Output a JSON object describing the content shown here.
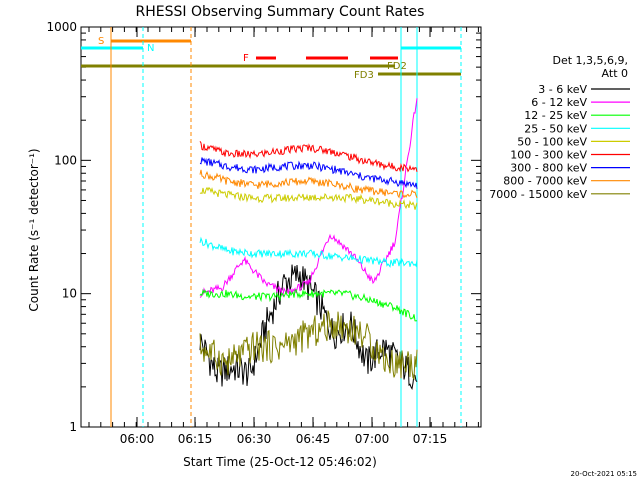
{
  "chart_data": {
    "type": "line",
    "title": "RHESSI Observing Summary Count Rates",
    "xlabel": "Start Time (25-Oct-12 05:46:02)",
    "ylabel": "Count Rate (s⁻¹ detector⁻¹)",
    "x_ticks": [
      "06:00",
      "06:15",
      "06:30",
      "06:45",
      "07:00",
      "07:15"
    ],
    "y_ticks": [
      "1",
      "10",
      "100",
      "1000"
    ],
    "ylim": [
      1,
      1000
    ],
    "yscale": "log",
    "legend_header": [
      "Det 1,3,5,6,9,",
      "Att 0"
    ],
    "legend_placement": "right",
    "series": [
      {
        "name": "3 - 6 keV",
        "color": "#000000",
        "values": [
          4.5,
          2.5,
          2.8,
          2.5,
          6,
          12,
          14,
          9,
          5,
          6,
          3,
          4,
          3,
          2.3
        ]
      },
      {
        "name": "6 - 12 keV",
        "color": "#ff00ff",
        "values": [
          10,
          11,
          18,
          12,
          10,
          12,
          28,
          20,
          12,
          25,
          300
        ]
      },
      {
        "name": "12 - 25 keV",
        "color": "#00ff00",
        "values": [
          10,
          10,
          9.5,
          9.5,
          10,
          10,
          10,
          9,
          8,
          6.5
        ]
      },
      {
        "name": "25 - 50 keV",
        "color": "#00ffff",
        "values": [
          25,
          21,
          20,
          20,
          20,
          19,
          18,
          17,
          17
        ]
      },
      {
        "name": "50 - 100 keV",
        "color": "#cccc00",
        "values": [
          60,
          55,
          52,
          52,
          53,
          53,
          51,
          48,
          45
        ]
      },
      {
        "name": "100 - 300 keV",
        "color": "#ff0000",
        "values": [
          130,
          112,
          110,
          118,
          125,
          115,
          100,
          90,
          87
        ]
      },
      {
        "name": "300 - 800 keV",
        "color": "#0000ff",
        "values": [
          100,
          90,
          85,
          90,
          92,
          85,
          75,
          70,
          65
        ]
      },
      {
        "name": "800 - 7000 keV",
        "color": "#ff8800",
        "values": [
          80,
          70,
          65,
          68,
          70,
          66,
          60,
          57,
          55
        ]
      },
      {
        "name": "7000 - 15000 keV",
        "color": "#808000",
        "values": [
          4,
          3,
          4,
          4,
          5,
          6,
          5,
          3,
          3
        ]
      }
    ],
    "annotations": {
      "S": "S",
      "N": "N",
      "F": "F",
      "FD2": "FD2",
      "FD3": "FD3"
    }
  },
  "footer": {
    "date": "20-Oct-2021 05:15"
  }
}
